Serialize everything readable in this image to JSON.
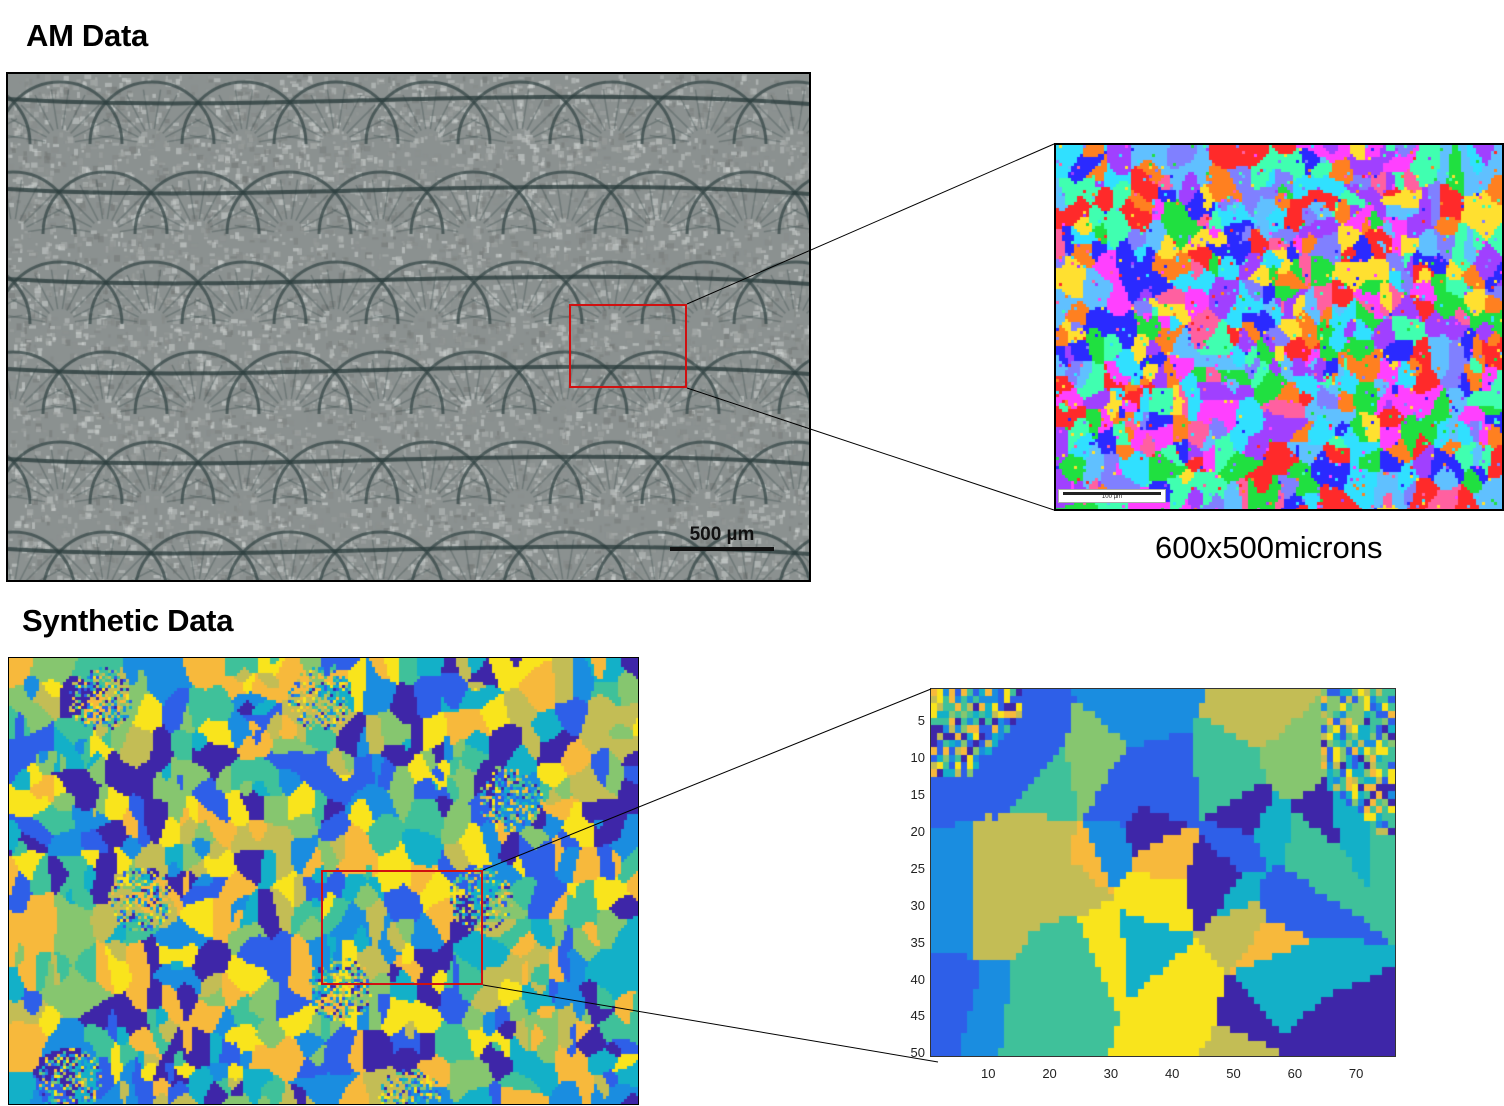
{
  "sections": {
    "am_title": "AM Data",
    "synthetic_title": "Synthetic Data"
  },
  "am_micrograph": {
    "scale_bar_label": "500 µm"
  },
  "ebsd_inset": {
    "caption": "600x500microns",
    "scale_bar_label": "100 µm"
  },
  "synthetic_zoom_plot": {
    "y_ticks": [
      "5",
      "10",
      "15",
      "20",
      "25",
      "30",
      "35",
      "40",
      "45",
      "50"
    ],
    "x_ticks": [
      "10",
      "20",
      "30",
      "40",
      "50",
      "60",
      "70"
    ],
    "x_range": [
      1,
      76
    ],
    "y_range": [
      1,
      50
    ]
  },
  "colors": {
    "highlight": "#d01010",
    "parula": [
      "#3e26a8",
      "#2e5fe8",
      "#1a8de0",
      "#13b0c8",
      "#3fc19a",
      "#86c66f",
      "#c3bd55",
      "#f7b93c",
      "#f9e41c"
    ]
  }
}
